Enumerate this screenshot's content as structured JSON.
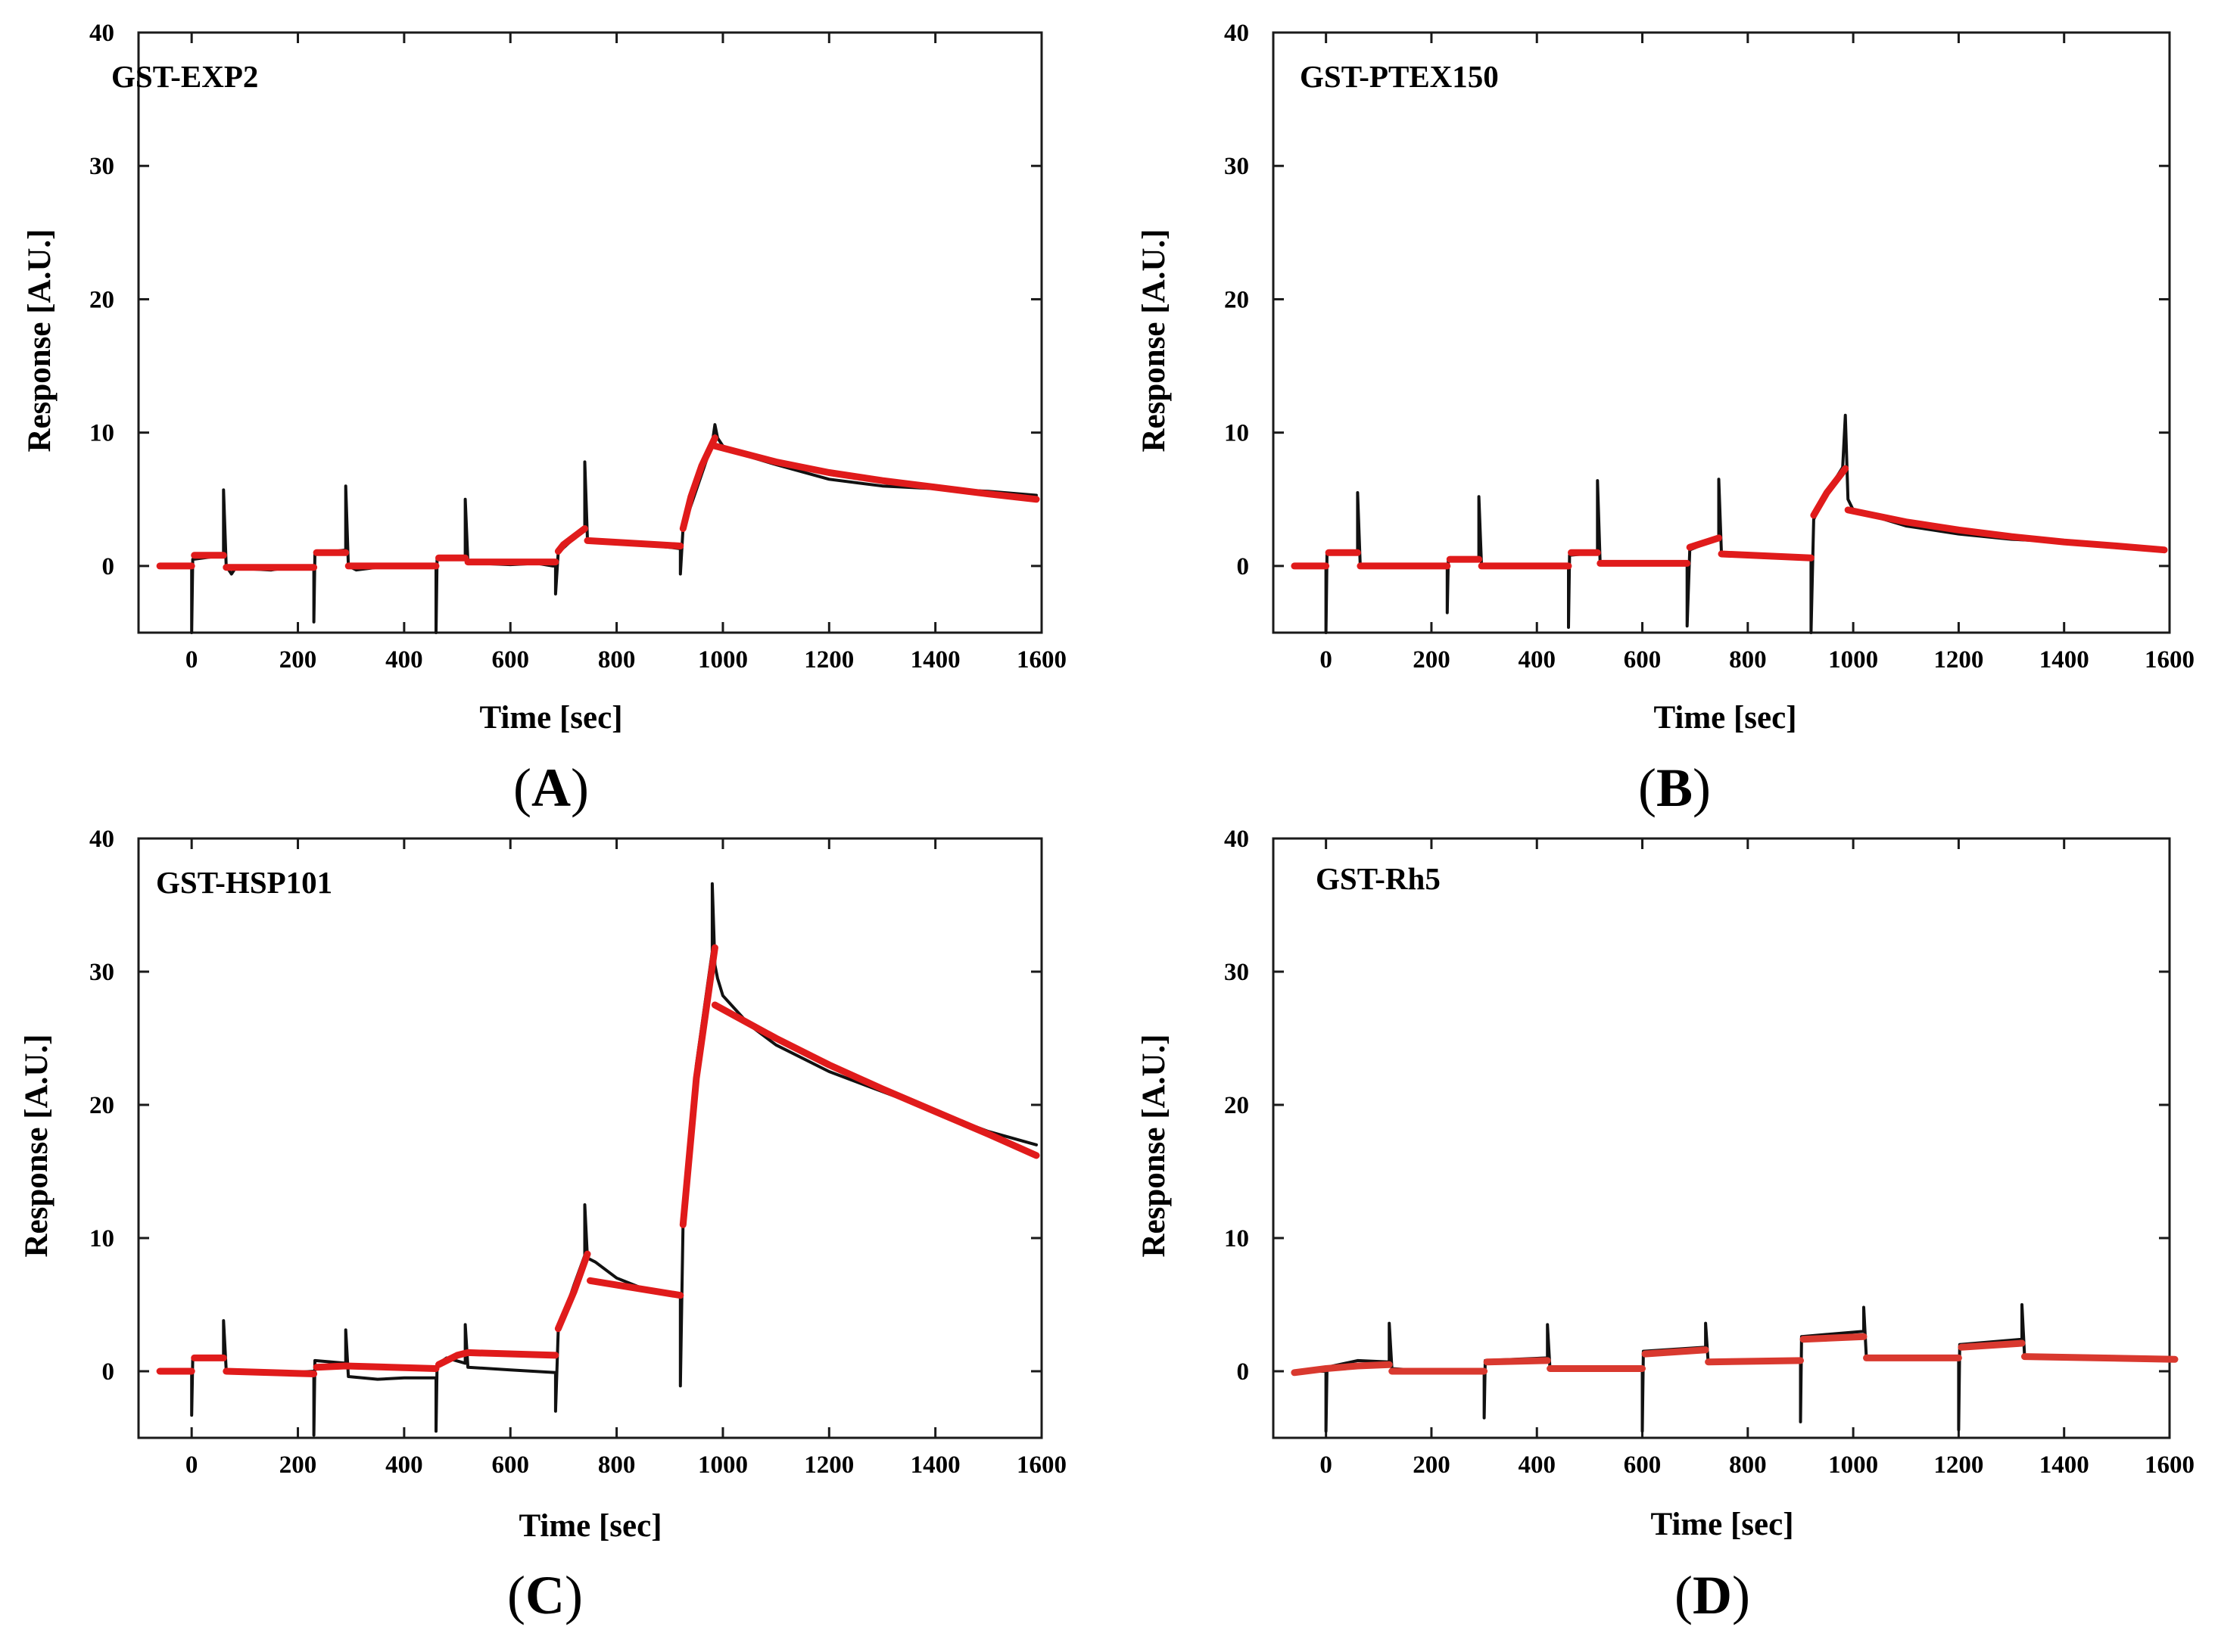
{
  "colors": {
    "data": "#111111",
    "fit": "#e01b1b",
    "fit_D": "#d9392f",
    "frame": "#1a1a1a"
  },
  "chart_data": [
    {
      "panel": "A",
      "caption_letter": "A",
      "type": "line",
      "title": "GST-EXP2",
      "xlabel": "Time [sec]",
      "ylabel": "Response [A.U.]",
      "xlim": [
        -100,
        1600
      ],
      "ylim": [
        -5,
        40
      ],
      "xticks": [
        0,
        200,
        400,
        600,
        800,
        1000,
        1200,
        1400,
        1600
      ],
      "yticks": [
        0,
        10,
        20,
        30,
        40
      ],
      "series": [
        {
          "name": "data",
          "x": [
            -60,
            0,
            0,
            2,
            60,
            60,
            65,
            75,
            85,
            100,
            150,
            200,
            230,
            230,
            232,
            290,
            290,
            295,
            310,
            350,
            400,
            440,
            460,
            460,
            462,
            515,
            515,
            520,
            540,
            600,
            650,
            680,
            685,
            685,
            690,
            740,
            740,
            745,
            760,
            800,
            850,
            900,
            920,
            920,
            925,
            980,
            985,
            990,
            1000,
            1050,
            1100,
            1200,
            1300,
            1400,
            1500,
            1590
          ],
          "y": [
            0,
            0,
            -5,
            0.5,
            0.8,
            5.7,
            0,
            -0.6,
            0,
            -0.2,
            -0.3,
            0,
            0,
            -4.2,
            0.9,
            1.2,
            6,
            0,
            -0.3,
            -0.1,
            0,
            0,
            0,
            -5,
            0.6,
            0.6,
            5,
            0.3,
            0.2,
            0.1,
            0.2,
            0,
            0,
            -2.1,
            1,
            2.8,
            7.8,
            2,
            1.9,
            1.8,
            1.6,
            1.4,
            1.3,
            -0.6,
            2.8,
            9.2,
            10.6,
            9.6,
            9,
            8.2,
            7.6,
            6.5,
            6,
            5.8,
            5.6,
            5.3
          ]
        },
        {
          "name": "fit",
          "segments": [
            {
              "x": [
                -60,
                0
              ],
              "y": [
                0,
                0
              ]
            },
            {
              "x": [
                5,
                60
              ],
              "y": [
                0.8,
                0.8
              ]
            },
            {
              "x": [
                65,
                230
              ],
              "y": [
                -0.1,
                -0.1
              ]
            },
            {
              "x": [
                235,
                290
              ],
              "y": [
                1,
                1
              ]
            },
            {
              "x": [
                295,
                460
              ],
              "y": [
                0,
                0
              ]
            },
            {
              "x": [
                465,
                515
              ],
              "y": [
                0.6,
                0.6
              ]
            },
            {
              "x": [
                520,
                685
              ],
              "y": [
                0.3,
                0.3
              ]
            },
            {
              "x": [
                690,
                700,
                720,
                740
              ],
              "y": [
                1.1,
                1.6,
                2.2,
                2.8
              ]
            },
            {
              "x": [
                745,
                920
              ],
              "y": [
                1.9,
                1.5
              ]
            },
            {
              "x": [
                925,
                940,
                960,
                985
              ],
              "y": [
                2.8,
                5.2,
                7.5,
                9.6
              ]
            },
            {
              "x": [
                985,
                1100,
                1200,
                1300,
                1400,
                1500,
                1590
              ],
              "y": [
                9,
                7.8,
                7,
                6.4,
                5.9,
                5.4,
                5
              ]
            }
          ]
        }
      ]
    },
    {
      "panel": "B",
      "caption_letter": "B",
      "type": "line",
      "title": "GST-PTEX150",
      "xlabel": "Time [sec]",
      "ylabel": "Response [A.U.]",
      "xlim": [
        -100,
        1600
      ],
      "ylim": [
        -5,
        40
      ],
      "xticks": [
        0,
        200,
        400,
        600,
        800,
        1000,
        1200,
        1400,
        1600
      ],
      "yticks": [
        0,
        10,
        20,
        30,
        40
      ],
      "series": [
        {
          "name": "data",
          "x": [
            -60,
            0,
            0,
            2,
            60,
            60,
            65,
            80,
            150,
            230,
            230,
            232,
            290,
            290,
            295,
            350,
            400,
            460,
            460,
            462,
            515,
            515,
            520,
            600,
            685,
            685,
            690,
            745,
            745,
            750,
            800,
            850,
            920,
            920,
            925,
            950,
            980,
            985,
            990,
            1000,
            1050,
            1100,
            1200,
            1300,
            1400,
            1500,
            1590
          ],
          "y": [
            0,
            0,
            -5,
            0.9,
            1,
            5.5,
            0,
            -0.1,
            0,
            0,
            -3.5,
            0.5,
            0.6,
            5.2,
            0,
            0,
            0,
            0,
            -4.6,
            0.8,
            1,
            6.4,
            0.2,
            0.1,
            0.2,
            -4.5,
            1.2,
            2.1,
            6.5,
            1,
            0.7,
            0.6,
            0.6,
            -5,
            3.5,
            5.5,
            7.4,
            11.3,
            5,
            4.2,
            3.6,
            3,
            2.4,
            2,
            1.8,
            1.5,
            1.3
          ]
        },
        {
          "name": "fit",
          "segments": [
            {
              "x": [
                -60,
                0
              ],
              "y": [
                0,
                0
              ]
            },
            {
              "x": [
                5,
                60
              ],
              "y": [
                1,
                1
              ]
            },
            {
              "x": [
                65,
                230
              ],
              "y": [
                0,
                0
              ]
            },
            {
              "x": [
                235,
                290
              ],
              "y": [
                0.5,
                0.5
              ]
            },
            {
              "x": [
                295,
                460
              ],
              "y": [
                0,
                0
              ]
            },
            {
              "x": [
                465,
                515
              ],
              "y": [
                1,
                1
              ]
            },
            {
              "x": [
                520,
                685
              ],
              "y": [
                0.2,
                0.2
              ]
            },
            {
              "x": [
                690,
                745
              ],
              "y": [
                1.4,
                2.1
              ]
            },
            {
              "x": [
                750,
                920
              ],
              "y": [
                0.9,
                0.6
              ]
            },
            {
              "x": [
                925,
                950,
                985
              ],
              "y": [
                3.8,
                5.5,
                7.3
              ]
            },
            {
              "x": [
                990,
                1100,
                1200,
                1300,
                1400,
                1500,
                1590
              ],
              "y": [
                4.2,
                3.3,
                2.7,
                2.2,
                1.8,
                1.5,
                1.2
              ]
            }
          ]
        }
      ]
    },
    {
      "panel": "C",
      "caption_letter": "C",
      "type": "line",
      "title": "GST-HSP101",
      "xlabel": "Time [sec]",
      "ylabel": "Response [A.U.]",
      "xlim": [
        -100,
        1600
      ],
      "ylim": [
        -5,
        40
      ],
      "xticks": [
        0,
        200,
        400,
        600,
        800,
        1000,
        1200,
        1400,
        1600
      ],
      "yticks": [
        0,
        10,
        20,
        30,
        40
      ],
      "series": [
        {
          "name": "data",
          "x": [
            -60,
            0,
            0,
            2,
            60,
            60,
            65,
            100,
            150,
            230,
            230,
            232,
            290,
            290,
            295,
            350,
            400,
            460,
            460,
            462,
            480,
            515,
            515,
            520,
            600,
            685,
            685,
            690,
            720,
            740,
            740,
            745,
            760,
            800,
            850,
            920,
            920,
            925,
            950,
            980,
            980,
            985,
            990,
            1000,
            1050,
            1100,
            1200,
            1300,
            1400,
            1500,
            1590
          ],
          "y": [
            0,
            0,
            -3.3,
            0.9,
            0.9,
            3.8,
            0.1,
            0,
            -0.2,
            0,
            -4.8,
            0.8,
            0.6,
            3.1,
            -0.4,
            -0.6,
            -0.5,
            -0.5,
            -4.5,
            0.5,
            1,
            0.6,
            3.5,
            0.3,
            0.1,
            -0.1,
            -3,
            3,
            6.5,
            8.7,
            12.5,
            8.5,
            8.2,
            7,
            6.2,
            5.6,
            -1.1,
            11,
            23,
            31.5,
            36.6,
            30.5,
            29.5,
            28.2,
            26,
            24.5,
            22.5,
            21,
            19.5,
            18,
            17
          ]
        },
        {
          "name": "fit",
          "segments": [
            {
              "x": [
                -60,
                0
              ],
              "y": [
                0,
                0
              ]
            },
            {
              "x": [
                5,
                60
              ],
              "y": [
                1,
                1
              ]
            },
            {
              "x": [
                65,
                230
              ],
              "y": [
                0,
                -0.2
              ]
            },
            {
              "x": [
                235,
                290,
                460
              ],
              "y": [
                0.3,
                0.4,
                0.2
              ]
            },
            {
              "x": [
                465,
                500,
                520,
                685
              ],
              "y": [
                0.5,
                1.2,
                1.4,
                1.2
              ]
            },
            {
              "x": [
                690,
                720,
                745
              ],
              "y": [
                3.2,
                6,
                8.8
              ]
            },
            {
              "x": [
                750,
                920
              ],
              "y": [
                6.8,
                5.7
              ]
            },
            {
              "x": [
                925,
                950,
                985
              ],
              "y": [
                11,
                22,
                31.8
              ]
            },
            {
              "x": [
                985,
                1100,
                1200,
                1300,
                1400,
                1500,
                1590
              ],
              "y": [
                27.5,
                25,
                23,
                21.2,
                19.5,
                17.8,
                16.2
              ]
            }
          ]
        }
      ]
    },
    {
      "panel": "D",
      "caption_letter": "D",
      "type": "line",
      "title": "GST-Rh5",
      "xlabel": "Time [sec]",
      "ylabel": "Response [A.U.]",
      "xlim": [
        -100,
        1600
      ],
      "ylim": [
        -5,
        40
      ],
      "xticks": [
        0,
        200,
        400,
        600,
        800,
        1000,
        1200,
        1400,
        1600
      ],
      "yticks": [
        0,
        10,
        20,
        30,
        40
      ],
      "series": [
        {
          "name": "data",
          "x": [
            -60,
            0,
            0,
            2,
            60,
            120,
            120,
            125,
            200,
            300,
            300,
            302,
            420,
            420,
            425,
            500,
            600,
            600,
            602,
            720,
            720,
            725,
            800,
            900,
            900,
            902,
            1020,
            1020,
            1025,
            1100,
            1200,
            1200,
            1202,
            1320,
            1320,
            1325,
            1400,
            1500,
            1610
          ],
          "y": [
            0,
            0,
            -4.5,
            0.3,
            0.8,
            0.7,
            3.6,
            0.2,
            0,
            0,
            -3.5,
            0.8,
            1,
            3.5,
            0.1,
            0.2,
            0.2,
            -4.5,
            1.5,
            1.8,
            3.6,
            0.6,
            0.8,
            0.7,
            -3.8,
            2.6,
            3,
            4.8,
            1,
            0.9,
            0.9,
            -4.4,
            2,
            2.4,
            5,
            1.1,
            1,
            1,
            1
          ]
        },
        {
          "name": "fit",
          "segments": [
            {
              "x": [
                -60,
                0,
                60,
                120
              ],
              "y": [
                -0.1,
                0.2,
                0.4,
                0.5
              ]
            },
            {
              "x": [
                125,
                300
              ],
              "y": [
                0,
                0
              ]
            },
            {
              "x": [
                305,
                420
              ],
              "y": [
                0.7,
                0.8
              ]
            },
            {
              "x": [
                425,
                600
              ],
              "y": [
                0.2,
                0.2
              ]
            },
            {
              "x": [
                605,
                720
              ],
              "y": [
                1.3,
                1.6
              ]
            },
            {
              "x": [
                725,
                900
              ],
              "y": [
                0.7,
                0.8
              ]
            },
            {
              "x": [
                905,
                1020
              ],
              "y": [
                2.4,
                2.6
              ]
            },
            {
              "x": [
                1025,
                1200
              ],
              "y": [
                1,
                1
              ]
            },
            {
              "x": [
                1205,
                1320
              ],
              "y": [
                1.8,
                2.1
              ]
            },
            {
              "x": [
                1325,
                1610
              ],
              "y": [
                1.1,
                0.9
              ]
            }
          ]
        }
      ]
    }
  ]
}
